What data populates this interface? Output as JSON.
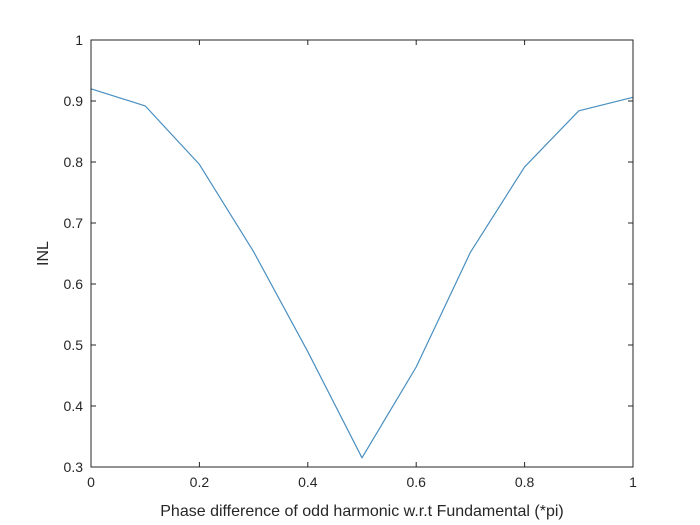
{
  "chart_data": {
    "type": "line",
    "title": "",
    "xlabel": "Phase difference of odd harmonic w.r.t Fundamental (*pi)",
    "ylabel": "INL",
    "xlim": [
      0,
      1
    ],
    "ylim": [
      0.3,
      1
    ],
    "xticks": [
      0,
      0.2,
      0.4,
      0.6,
      0.8,
      1
    ],
    "xtick_labels": [
      "0",
      "0.2",
      "0.4",
      "0.6",
      "0.8",
      "1"
    ],
    "yticks": [
      0.3,
      0.4,
      0.5,
      0.6,
      0.7,
      0.8,
      0.9,
      1
    ],
    "ytick_labels": [
      "0.3",
      "0.4",
      "0.5",
      "0.6",
      "0.7",
      "0.8",
      "0.9",
      "1"
    ],
    "grid": false,
    "legend": null,
    "series": [
      {
        "name": "INL",
        "color": "#0072BD",
        "x": [
          0,
          0.1,
          0.2,
          0.3,
          0.4,
          0.5,
          0.6,
          0.7,
          0.8,
          0.9,
          1.0
        ],
        "values": [
          0.92,
          0.892,
          0.796,
          0.653,
          0.489,
          0.315,
          0.464,
          0.652,
          0.792,
          0.884,
          0.906
        ]
      }
    ]
  },
  "axes_color": "#262626",
  "line_color": "#4a8fc0"
}
